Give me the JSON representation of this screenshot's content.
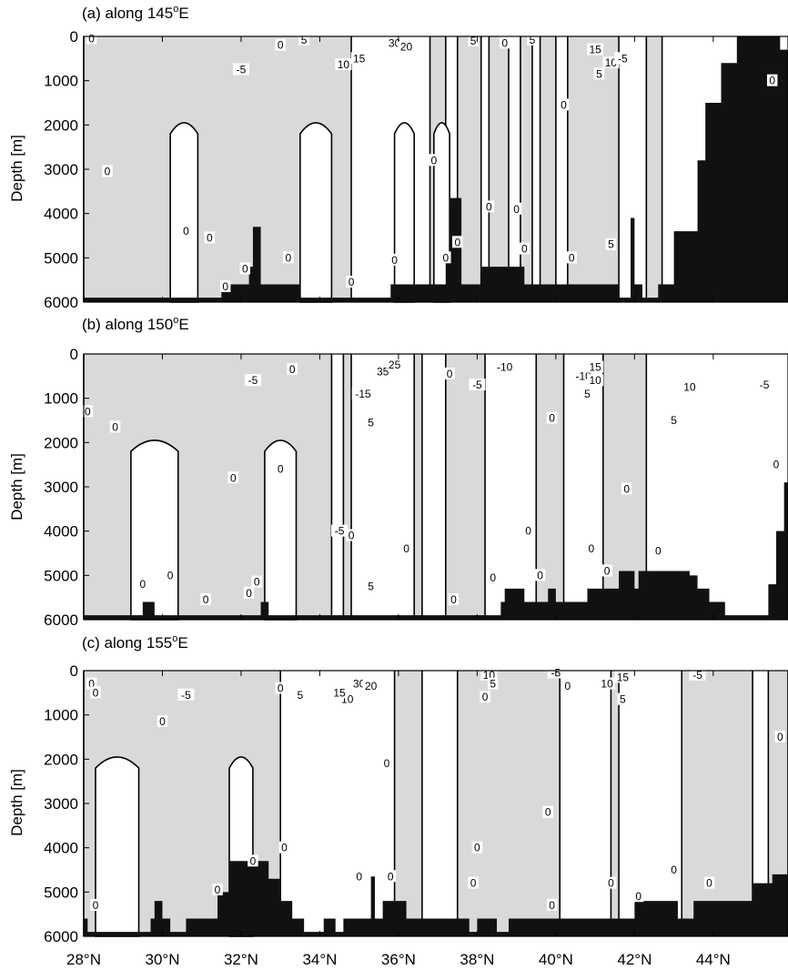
{
  "figure": {
    "y_axis_label": "Depth [m]",
    "x_tick_labels": [
      "28°N",
      "30°N",
      "32°N",
      "34°N",
      "36°N",
      "38°N",
      "40°N",
      "42°N",
      "44°N"
    ],
    "y_tick_labels": [
      "0",
      "1000",
      "2000",
      "3000",
      "4000",
      "5000",
      "6000"
    ]
  },
  "colors": {
    "negative_fill": "#d9d9d9",
    "positive_fill": "#ffffff",
    "bottom_topography": "#111111",
    "contour": "#000000"
  },
  "chart_data": [
    {
      "type": "contour",
      "title_prefix": "(a) along 145",
      "title_superscript": "o",
      "title_suffix": "E",
      "xlabel": "",
      "ylabel": "Depth [m]",
      "xlim": [
        28,
        45.9
      ],
      "ylim": [
        6000,
        0
      ],
      "legend": "none",
      "negative_regions_shaded": [
        [
          28.0,
          34.8
        ],
        [
          36.8,
          37.2
        ],
        [
          37.5,
          38.1
        ],
        [
          38.3,
          38.8
        ],
        [
          39.1,
          39.4
        ],
        [
          39.6,
          40.0
        ],
        [
          40.3,
          41.6
        ],
        [
          42.3,
          42.7
        ]
      ],
      "positive_columns": [
        [
          30.2,
          30.9
        ],
        [
          33.5,
          34.3
        ],
        [
          35.9,
          36.4
        ],
        [
          36.9,
          37.3
        ]
      ],
      "contour_labels": [
        {
          "lat": 28.2,
          "depth": 50,
          "value": "0"
        },
        {
          "lat": 32.0,
          "depth": 750,
          "value": "-5"
        },
        {
          "lat": 33.0,
          "depth": 200,
          "value": "0"
        },
        {
          "lat": 33.6,
          "depth": 80,
          "value": "5"
        },
        {
          "lat": 34.6,
          "depth": 640,
          "value": "10"
        },
        {
          "lat": 35.0,
          "depth": 500,
          "value": "15"
        },
        {
          "lat": 35.9,
          "depth": 150,
          "value": "30"
        },
        {
          "lat": 36.2,
          "depth": 240,
          "value": "20"
        },
        {
          "lat": 37.9,
          "depth": 100,
          "value": "5"
        },
        {
          "lat": 38.7,
          "depth": 150,
          "value": "0"
        },
        {
          "lat": 39.4,
          "depth": 80,
          "value": "5"
        },
        {
          "lat": 41.0,
          "depth": 300,
          "value": "15"
        },
        {
          "lat": 41.4,
          "depth": 600,
          "value": "10"
        },
        {
          "lat": 41.1,
          "depth": 850,
          "value": "5"
        },
        {
          "lat": 41.7,
          "depth": 500,
          "value": "-5"
        },
        {
          "lat": 40.2,
          "depth": 1550,
          "value": "0"
        },
        {
          "lat": 28.6,
          "depth": 3050,
          "value": "0"
        },
        {
          "lat": 30.6,
          "depth": 4400,
          "value": "0"
        },
        {
          "lat": 31.2,
          "depth": 4550,
          "value": "0"
        },
        {
          "lat": 31.6,
          "depth": 5650,
          "value": "0"
        },
        {
          "lat": 32.1,
          "depth": 5250,
          "value": "0"
        },
        {
          "lat": 33.2,
          "depth": 5000,
          "value": "0"
        },
        {
          "lat": 34.8,
          "depth": 5550,
          "value": "0"
        },
        {
          "lat": 35.9,
          "depth": 5050,
          "value": "0"
        },
        {
          "lat": 36.9,
          "depth": 2800,
          "value": "0"
        },
        {
          "lat": 37.2,
          "depth": 5000,
          "value": "0"
        },
        {
          "lat": 37.5,
          "depth": 4650,
          "value": "0"
        },
        {
          "lat": 38.3,
          "depth": 3850,
          "value": "0"
        },
        {
          "lat": 39.0,
          "depth": 3900,
          "value": "0"
        },
        {
          "lat": 39.2,
          "depth": 4800,
          "value": "0"
        },
        {
          "lat": 40.4,
          "depth": 5000,
          "value": "0"
        },
        {
          "lat": 41.4,
          "depth": 4700,
          "value": "5"
        },
        {
          "lat": 45.5,
          "depth": 1000,
          "value": "0"
        }
      ],
      "bottom_profile": [
        [
          28.0,
          5900
        ],
        [
          30.0,
          5900
        ],
        [
          31.4,
          5900
        ],
        [
          31.5,
          5600
        ],
        [
          32.1,
          5600
        ],
        [
          32.2,
          5200
        ],
        [
          32.3,
          4300
        ],
        [
          32.5,
          4300
        ],
        [
          32.5,
          5600
        ],
        [
          33.0,
          5600
        ],
        [
          33.5,
          5900
        ],
        [
          35.7,
          5900
        ],
        [
          35.8,
          5600
        ],
        [
          37.0,
          5600
        ],
        [
          37.2,
          4900
        ],
        [
          37.3,
          3650
        ],
        [
          37.5,
          3650
        ],
        [
          37.6,
          5600
        ],
        [
          38.0,
          5600
        ],
        [
          38.1,
          5200
        ],
        [
          39.0,
          5200
        ],
        [
          39.2,
          5600
        ],
        [
          41.4,
          5600
        ],
        [
          41.6,
          5900
        ],
        [
          41.8,
          5900
        ],
        [
          41.9,
          4100
        ],
        [
          42.0,
          5600
        ],
        [
          42.2,
          5900
        ],
        [
          42.4,
          5900
        ],
        [
          42.6,
          5600
        ],
        [
          43.0,
          4400
        ],
        [
          43.6,
          2800
        ],
        [
          43.8,
          1500
        ],
        [
          44.2,
          600
        ],
        [
          44.6,
          0
        ],
        [
          45.4,
          0
        ],
        [
          45.7,
          300
        ],
        [
          45.9,
          300
        ]
      ]
    },
    {
      "type": "contour",
      "title_prefix": "(b) along 150",
      "title_superscript": "o",
      "title_suffix": "E",
      "xlabel": "",
      "ylabel": "Depth [m]",
      "xlim": [
        28,
        45.9
      ],
      "ylim": [
        6000,
        0
      ],
      "legend": "none",
      "negative_regions_shaded": [
        [
          28.0,
          34.3
        ],
        [
          34.6,
          34.8
        ],
        [
          36.4,
          36.6
        ],
        [
          37.2,
          38.2
        ],
        [
          39.5,
          40.2
        ],
        [
          41.2,
          42.3
        ]
      ],
      "positive_columns": [
        [
          29.2,
          30.4
        ],
        [
          32.6,
          33.4
        ]
      ],
      "contour_labels": [
        {
          "lat": 28.1,
          "depth": 1300,
          "value": "0"
        },
        {
          "lat": 28.8,
          "depth": 1650,
          "value": "0"
        },
        {
          "lat": 32.3,
          "depth": 600,
          "value": "-5"
        },
        {
          "lat": 33.3,
          "depth": 350,
          "value": "0"
        },
        {
          "lat": 35.1,
          "depth": 900,
          "value": "-15"
        },
        {
          "lat": 35.6,
          "depth": 400,
          "value": "35"
        },
        {
          "lat": 35.9,
          "depth": 250,
          "value": "25"
        },
        {
          "lat": 35.3,
          "depth": 1550,
          "value": "5"
        },
        {
          "lat": 37.3,
          "depth": 450,
          "value": "0"
        },
        {
          "lat": 38.0,
          "depth": 700,
          "value": "-5"
        },
        {
          "lat": 38.7,
          "depth": 300,
          "value": "-10"
        },
        {
          "lat": 40.7,
          "depth": 500,
          "value": "-10"
        },
        {
          "lat": 41.0,
          "depth": 300,
          "value": "15"
        },
        {
          "lat": 41.0,
          "depth": 600,
          "value": "10"
        },
        {
          "lat": 40.8,
          "depth": 900,
          "value": "5"
        },
        {
          "lat": 43.4,
          "depth": 750,
          "value": "10"
        },
        {
          "lat": 43.0,
          "depth": 1500,
          "value": "5"
        },
        {
          "lat": 45.3,
          "depth": 700,
          "value": "-5"
        },
        {
          "lat": 39.9,
          "depth": 1450,
          "value": "0"
        },
        {
          "lat": 31.8,
          "depth": 2800,
          "value": "0"
        },
        {
          "lat": 33.0,
          "depth": 2600,
          "value": "0"
        },
        {
          "lat": 34.5,
          "depth": 4000,
          "value": "-5"
        },
        {
          "lat": 34.8,
          "depth": 4100,
          "value": "0"
        },
        {
          "lat": 35.3,
          "depth": 5250,
          "value": "5"
        },
        {
          "lat": 36.2,
          "depth": 4400,
          "value": "0"
        },
        {
          "lat": 38.4,
          "depth": 5050,
          "value": "0"
        },
        {
          "lat": 37.4,
          "depth": 5550,
          "value": "0"
        },
        {
          "lat": 39.3,
          "depth": 4000,
          "value": "0"
        },
        {
          "lat": 39.6,
          "depth": 5000,
          "value": "0"
        },
        {
          "lat": 40.9,
          "depth": 4400,
          "value": "0"
        },
        {
          "lat": 41.3,
          "depth": 4900,
          "value": "0"
        },
        {
          "lat": 41.8,
          "depth": 3050,
          "value": "0"
        },
        {
          "lat": 42.6,
          "depth": 4450,
          "value": "0"
        },
        {
          "lat": 29.5,
          "depth": 5200,
          "value": "0"
        },
        {
          "lat": 30.2,
          "depth": 5000,
          "value": "0"
        },
        {
          "lat": 31.1,
          "depth": 5550,
          "value": "0"
        },
        {
          "lat": 32.2,
          "depth": 5400,
          "value": "0"
        },
        {
          "lat": 32.4,
          "depth": 5150,
          "value": "0"
        },
        {
          "lat": 45.6,
          "depth": 2500,
          "value": "0"
        }
      ],
      "bottom_profile": [
        [
          28.0,
          5900
        ],
        [
          29.4,
          5900
        ],
        [
          29.5,
          5600
        ],
        [
          29.7,
          5600
        ],
        [
          29.8,
          5900
        ],
        [
          32.4,
          5900
        ],
        [
          32.5,
          5600
        ],
        [
          32.6,
          5600
        ],
        [
          32.7,
          5900
        ],
        [
          38.2,
          5900
        ],
        [
          38.6,
          5600
        ],
        [
          38.7,
          5300
        ],
        [
          39.1,
          5300
        ],
        [
          39.2,
          5600
        ],
        [
          39.6,
          5600
        ],
        [
          39.8,
          5300
        ],
        [
          40.0,
          5600
        ],
        [
          40.6,
          5600
        ],
        [
          40.8,
          5300
        ],
        [
          41.4,
          5300
        ],
        [
          41.6,
          4900
        ],
        [
          41.8,
          4900
        ],
        [
          42.0,
          5300
        ],
        [
          42.1,
          4900
        ],
        [
          43.2,
          4900
        ],
        [
          43.4,
          5000
        ],
        [
          43.6,
          5300
        ],
        [
          43.9,
          5600
        ],
        [
          44.3,
          5900
        ],
        [
          45.3,
          5900
        ],
        [
          45.4,
          5200
        ],
        [
          45.6,
          4000
        ],
        [
          45.8,
          2900
        ],
        [
          45.9,
          2100
        ]
      ]
    },
    {
      "type": "contour",
      "title_prefix": "(c) along 155",
      "title_superscript": "o",
      "title_suffix": "E",
      "xlabel": "",
      "ylabel": "Depth [m]",
      "xlim": [
        28,
        45.9
      ],
      "ylim": [
        6000,
        0
      ],
      "legend": "none",
      "negative_regions_shaded": [
        [
          28.0,
          33.0
        ],
        [
          35.9,
          36.6
        ],
        [
          37.5,
          40.1
        ],
        [
          41.4,
          41.6
        ],
        [
          43.2,
          45.0
        ],
        [
          45.4,
          45.9
        ]
      ],
      "positive_columns": [
        [
          28.3,
          29.4
        ],
        [
          31.7,
          32.3
        ]
      ],
      "contour_labels": [
        {
          "lat": 28.2,
          "depth": 300,
          "value": "0"
        },
        {
          "lat": 28.3,
          "depth": 500,
          "value": "0"
        },
        {
          "lat": 30.6,
          "depth": 550,
          "value": "-5"
        },
        {
          "lat": 30.0,
          "depth": 1150,
          "value": "0"
        },
        {
          "lat": 33.0,
          "depth": 400,
          "value": "0"
        },
        {
          "lat": 33.5,
          "depth": 550,
          "value": "5"
        },
        {
          "lat": 34.7,
          "depth": 650,
          "value": "10"
        },
        {
          "lat": 34.5,
          "depth": 500,
          "value": "15"
        },
        {
          "lat": 35.0,
          "depth": 300,
          "value": "30"
        },
        {
          "lat": 35.3,
          "depth": 350,
          "value": "20"
        },
        {
          "lat": 38.3,
          "depth": 100,
          "value": "10"
        },
        {
          "lat": 38.4,
          "depth": 300,
          "value": "5"
        },
        {
          "lat": 38.2,
          "depth": 600,
          "value": "0"
        },
        {
          "lat": 40.0,
          "depth": 50,
          "value": "-5"
        },
        {
          "lat": 40.3,
          "depth": 350,
          "value": "0"
        },
        {
          "lat": 41.3,
          "depth": 300,
          "value": "10"
        },
        {
          "lat": 41.7,
          "depth": 150,
          "value": "15"
        },
        {
          "lat": 41.7,
          "depth": 650,
          "value": "5"
        },
        {
          "lat": 43.6,
          "depth": 100,
          "value": "-5"
        },
        {
          "lat": 35.7,
          "depth": 2100,
          "value": "0"
        },
        {
          "lat": 39.8,
          "depth": 3200,
          "value": "0"
        },
        {
          "lat": 38.0,
          "depth": 4000,
          "value": "0"
        },
        {
          "lat": 37.9,
          "depth": 4800,
          "value": "0"
        },
        {
          "lat": 35.8,
          "depth": 4650,
          "value": "0"
        },
        {
          "lat": 35.0,
          "depth": 4650,
          "value": "0"
        },
        {
          "lat": 33.1,
          "depth": 4000,
          "value": "0"
        },
        {
          "lat": 32.3,
          "depth": 4300,
          "value": "0"
        },
        {
          "lat": 31.4,
          "depth": 4950,
          "value": "0"
        },
        {
          "lat": 28.3,
          "depth": 5300,
          "value": "0"
        },
        {
          "lat": 39.9,
          "depth": 5300,
          "value": "0"
        },
        {
          "lat": 41.4,
          "depth": 4800,
          "value": "0"
        },
        {
          "lat": 42.1,
          "depth": 5100,
          "value": "0"
        },
        {
          "lat": 43.0,
          "depth": 4500,
          "value": "0"
        },
        {
          "lat": 43.9,
          "depth": 4800,
          "value": "0"
        },
        {
          "lat": 45.7,
          "depth": 1500,
          "value": "0"
        }
      ],
      "bottom_profile": [
        [
          28.0,
          5600
        ],
        [
          28.1,
          5900
        ],
        [
          29.6,
          5900
        ],
        [
          29.7,
          5600
        ],
        [
          29.8,
          5200
        ],
        [
          30.0,
          5600
        ],
        [
          30.2,
          5900
        ],
        [
          30.6,
          5600
        ],
        [
          31.3,
          5600
        ],
        [
          31.4,
          5000
        ],
        [
          31.7,
          4300
        ],
        [
          32.6,
          4300
        ],
        [
          32.7,
          4700
        ],
        [
          33.0,
          5200
        ],
        [
          33.3,
          5600
        ],
        [
          33.6,
          5900
        ],
        [
          34.0,
          5900
        ],
        [
          34.1,
          5600
        ],
        [
          34.3,
          5600
        ],
        [
          34.4,
          5900
        ],
        [
          34.6,
          5600
        ],
        [
          35.2,
          5600
        ],
        [
          35.3,
          4650
        ],
        [
          35.4,
          5600
        ],
        [
          35.6,
          5200
        ],
        [
          36.2,
          5600
        ],
        [
          36.7,
          5600
        ],
        [
          37.0,
          5600
        ],
        [
          37.8,
          5900
        ],
        [
          38.0,
          5600
        ],
        [
          38.4,
          5600
        ],
        [
          38.5,
          5900
        ],
        [
          38.8,
          5600
        ],
        [
          41.9,
          5600
        ],
        [
          42.0,
          5200
        ],
        [
          43.0,
          5200
        ],
        [
          43.1,
          5600
        ],
        [
          43.4,
          5600
        ],
        [
          43.5,
          5200
        ],
        [
          44.7,
          5200
        ],
        [
          45.0,
          4800
        ],
        [
          45.5,
          4600
        ],
        [
          45.9,
          4600
        ]
      ]
    }
  ]
}
